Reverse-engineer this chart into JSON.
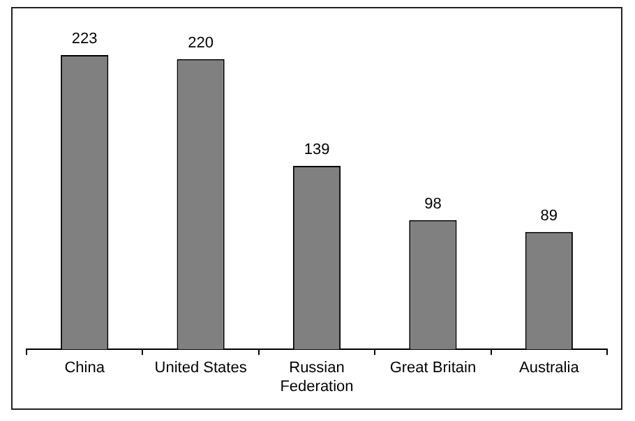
{
  "chart_data": {
    "type": "bar",
    "categories": [
      "China",
      "United States",
      "Russian Federation",
      "Great Britain",
      "Australia"
    ],
    "values": [
      223,
      220,
      139,
      98,
      89
    ],
    "color": "#808080",
    "data_labels": true,
    "grid": false,
    "legend": false
  }
}
